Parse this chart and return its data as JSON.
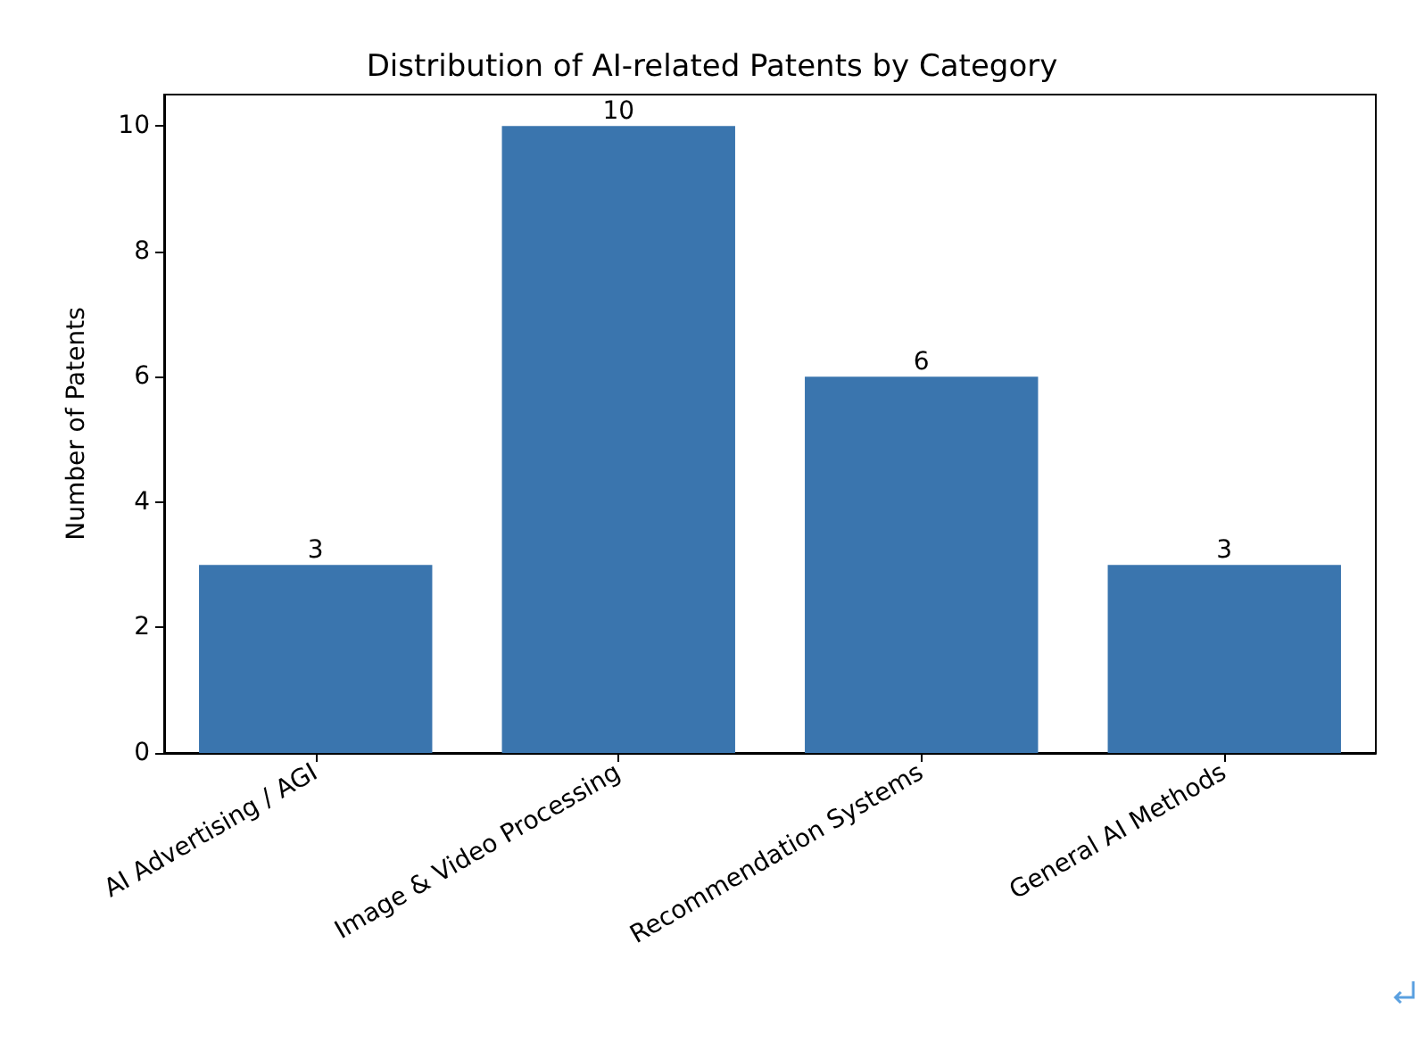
{
  "chart_data": {
    "type": "bar",
    "title": "Distribution of AI-related Patents by Category",
    "ylabel": "Number of Patents",
    "categories": [
      "AI Advertising / AGI",
      "Image & Video Processing",
      "Recommendation Systems",
      "General AI Methods"
    ],
    "values": [
      3,
      10,
      6,
      3
    ],
    "color": "#3a75ae",
    "ylim": [
      0,
      10.5
    ],
    "yticks": [
      0,
      2,
      4,
      6,
      8,
      10
    ],
    "grid": false,
    "data_labels": true
  }
}
